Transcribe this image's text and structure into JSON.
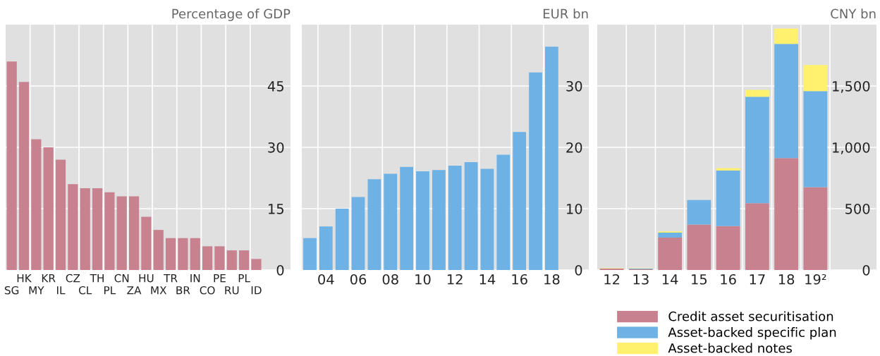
{
  "chart_data": [
    {
      "type": "bar",
      "ylabel": "Percentage of GDP",
      "categories": [
        "SG",
        "HK",
        "MY",
        "KR",
        "IL",
        "CZ",
        "CL",
        "TH",
        "PL",
        "CN",
        "ZA",
        "HU",
        "MX",
        "TR",
        "BR",
        "IN",
        "CO",
        "PE",
        "RU",
        "PL",
        "ID"
      ],
      "values": [
        51,
        46,
        32,
        30,
        27,
        21,
        20,
        20,
        19,
        18,
        18,
        13,
        9.8,
        7.8,
        7.8,
        7.8,
        5.8,
        5.8,
        4.8,
        4.8,
        2.7
      ],
      "color": "#c8818f",
      "ylim": [
        0,
        60
      ],
      "yticks": [
        0,
        15,
        30,
        45
      ],
      "grid": true
    },
    {
      "type": "bar",
      "ylabel": "EUR bn",
      "categories": [
        null,
        "04",
        null,
        "06",
        null,
        "08",
        null,
        "10",
        null,
        "12",
        null,
        "14",
        null,
        "16",
        null,
        "18"
      ],
      "values": [
        5.2,
        7.1,
        10.0,
        11.9,
        14.8,
        15.7,
        16.8,
        16.1,
        16.3,
        17.0,
        17.6,
        16.5,
        18.8,
        22.5,
        32.2,
        36.4
      ],
      "color": "#6db1e5",
      "ylim": [
        0,
        40
      ],
      "yticks": [
        0,
        10,
        20,
        30
      ],
      "grid": true
    },
    {
      "type": "bar",
      "ylabel": "CNY bn",
      "stacked": true,
      "legend": "bottom",
      "categories": [
        "12",
        "13",
        "14",
        "15",
        "16",
        "17",
        "18",
        "19²"
      ],
      "series": [
        {
          "name": "Credit asset securitisation",
          "color": "#c8818f",
          "values": [
            12,
            6,
            265,
            371,
            358,
            544,
            913,
            675
          ]
        },
        {
          "name": "Asset-backed specific plan",
          "color": "#6db1e5",
          "values": [
            0,
            6,
            39,
            200,
            454,
            868,
            931,
            783
          ]
        },
        {
          "name": "Asset-backed notes",
          "color": "#fff06e",
          "values": [
            3,
            3,
            11,
            0,
            19,
            57,
            125,
            213
          ]
        }
      ],
      "ylim": [
        0,
        2000
      ],
      "yticks": [
        0,
        500,
        {
          "value": 1000,
          "label": "1,000"
        },
        {
          "value": 1500,
          "label": "1,500"
        }
      ],
      "grid": true
    }
  ]
}
